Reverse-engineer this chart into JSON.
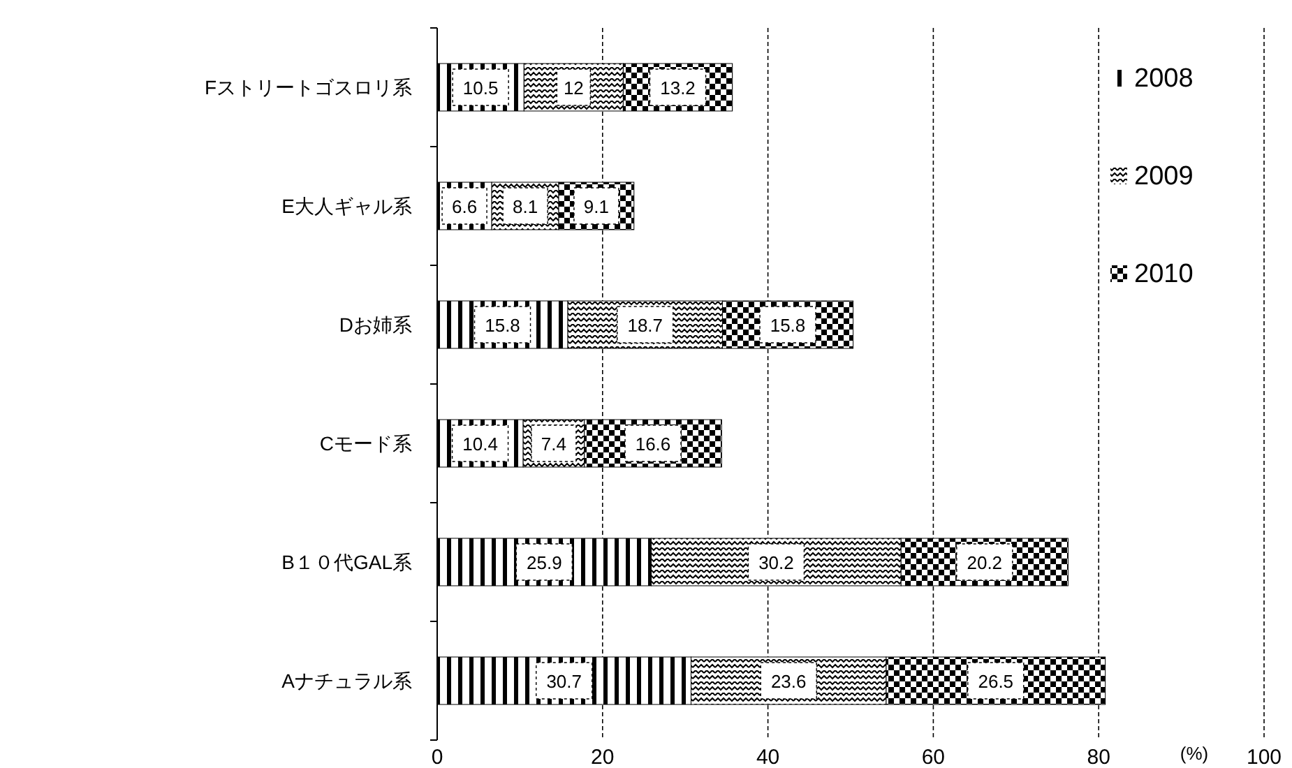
{
  "chart_data": {
    "type": "bar",
    "orientation": "horizontal",
    "stacked": true,
    "data_labels": true,
    "categories": [
      "Fストリートゴスロリ系",
      "E大人ギャル系",
      "Dお姉系",
      "Cモード系",
      "B１０代GAL系",
      "Aナチュラル系"
    ],
    "series": [
      {
        "name": "2008",
        "color": "#000000",
        "values": [
          10.5,
          6.6,
          15.8,
          10.4,
          25.9,
          30.7
        ]
      },
      {
        "name": "2009",
        "color": "#000000",
        "values": [
          12,
          8.1,
          18.7,
          7.4,
          30.2,
          23.6
        ]
      },
      {
        "name": "2010",
        "color": "#000000",
        "values": [
          13.2,
          9.1,
          15.8,
          16.6,
          20.2,
          26.5
        ]
      }
    ],
    "xlim": [
      0,
      100
    ],
    "xticks": [
      0,
      20,
      40,
      60,
      80,
      100
    ],
    "xlabel": "(%)",
    "grid": "x",
    "legend": "top right"
  }
}
